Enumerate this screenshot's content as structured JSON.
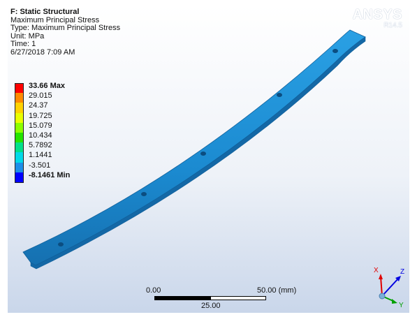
{
  "header": {
    "title": "F: Static Structural",
    "lines": [
      "Maximum Principal Stress",
      "Type: Maximum Principal Stress",
      "Unit: MPa",
      "Time: 1",
      "6/27/2018 7:09 AM"
    ]
  },
  "legend": {
    "bands": [
      {
        "label": "33.66 Max",
        "color": "#ff0000",
        "bold": true
      },
      {
        "label": "29.015",
        "color": "#ff8a00",
        "bold": false
      },
      {
        "label": "24.37",
        "color": "#ffd200",
        "bold": false
      },
      {
        "label": "19.725",
        "color": "#e9ff00",
        "bold": false
      },
      {
        "label": "15.079",
        "color": "#8cff00",
        "bold": false
      },
      {
        "label": "10.434",
        "color": "#24e400",
        "bold": false
      },
      {
        "label": "5.7892",
        "color": "#00e08a",
        "bold": false
      },
      {
        "label": "1.1441",
        "color": "#00d9e8",
        "bold": false
      },
      {
        "label": "-3.501",
        "color": "#1c8fe8",
        "bold": false
      },
      {
        "label": "-8.1461 Min",
        "color": "#0000ff",
        "bold": true
      }
    ]
  },
  "logo": {
    "brand": "ANSYS",
    "release": "R14.5"
  },
  "scale_bar": {
    "left_label": "0.00",
    "right_label": "50.00 (mm)",
    "mid_label": "25.00"
  },
  "triad": {
    "x_label": "X",
    "y_label": "Y",
    "z_label": "Z",
    "x_color": "#e00000",
    "y_color": "#00a000",
    "z_color": "#0000e0"
  },
  "model": {
    "fill_color": "#1f8fd4",
    "hole_count": 5
  }
}
